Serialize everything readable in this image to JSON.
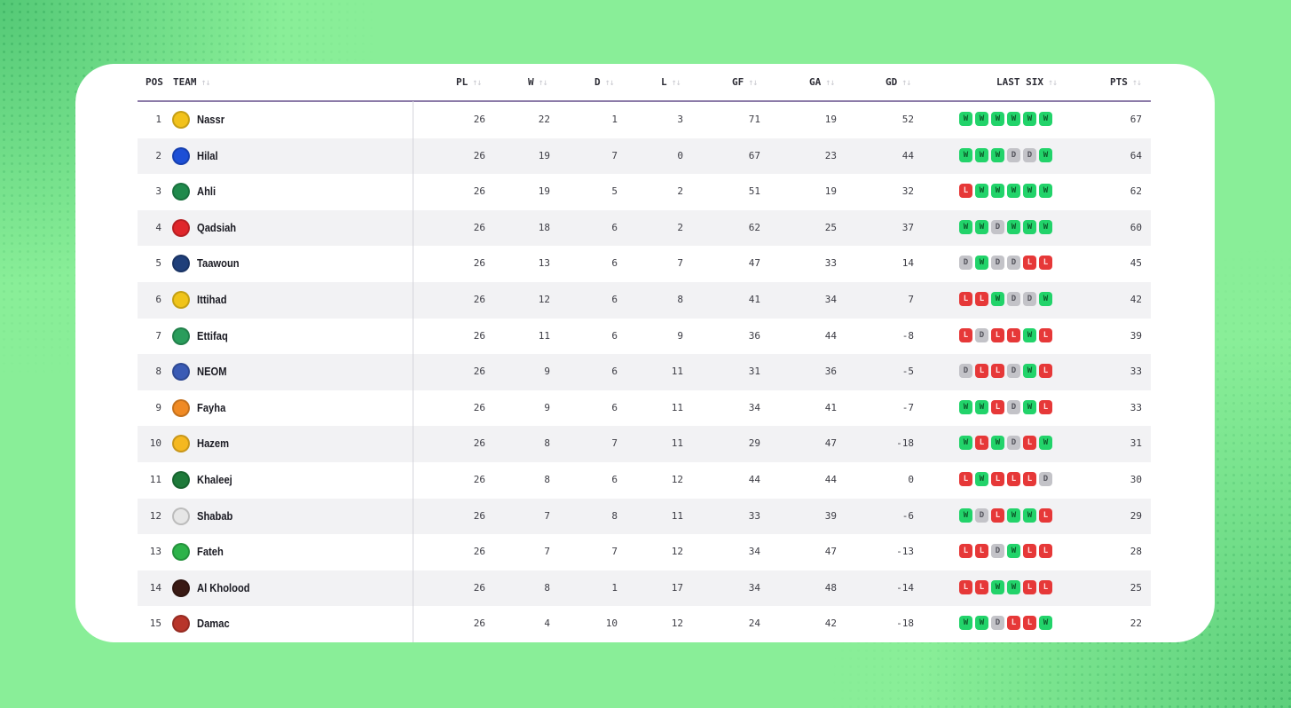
{
  "headers": {
    "pos": "POS",
    "team": "TEAM",
    "pl": "PL",
    "w": "W",
    "d": "D",
    "l": "L",
    "gf": "GF",
    "ga": "GA",
    "gd": "GD",
    "last_six": "LAST SIX",
    "pts": "PTS"
  },
  "colors": {
    "win": "#22d36a",
    "loss": "#e63838",
    "draw": "#c3c3c8",
    "background": "#89ee98"
  },
  "rows": [
    {
      "pos": "1",
      "team": "Nassr",
      "pl": "26",
      "w": "22",
      "d": "1",
      "l": "3",
      "gf": "71",
      "ga": "19",
      "gd": "52",
      "form": [
        "W",
        "W",
        "W",
        "W",
        "W",
        "W"
      ],
      "pts": "67",
      "logo_color": "#f2c21b"
    },
    {
      "pos": "2",
      "team": "Hilal",
      "pl": "26",
      "w": "19",
      "d": "7",
      "l": "0",
      "gf": "67",
      "ga": "23",
      "gd": "44",
      "form": [
        "W",
        "W",
        "W",
        "D",
        "D",
        "W"
      ],
      "pts": "64",
      "logo_color": "#1d4fd6"
    },
    {
      "pos": "3",
      "team": "Ahli",
      "pl": "26",
      "w": "19",
      "d": "5",
      "l": "2",
      "gf": "51",
      "ga": "19",
      "gd": "32",
      "form": [
        "L",
        "W",
        "W",
        "W",
        "W",
        "W"
      ],
      "pts": "62",
      "logo_color": "#1f8a4c"
    },
    {
      "pos": "4",
      "team": "Qadsiah",
      "pl": "26",
      "w": "18",
      "d": "6",
      "l": "2",
      "gf": "62",
      "ga": "25",
      "gd": "37",
      "form": [
        "W",
        "W",
        "D",
        "W",
        "W",
        "W"
      ],
      "pts": "60",
      "logo_color": "#e0262b"
    },
    {
      "pos": "5",
      "team": "Taawoun",
      "pl": "26",
      "w": "13",
      "d": "6",
      "l": "7",
      "gf": "47",
      "ga": "33",
      "gd": "14",
      "form": [
        "D",
        "W",
        "D",
        "D",
        "L",
        "L"
      ],
      "pts": "45",
      "logo_color": "#1f3f7a"
    },
    {
      "pos": "6",
      "team": "Ittihad",
      "pl": "26",
      "w": "12",
      "d": "6",
      "l": "8",
      "gf": "41",
      "ga": "34",
      "gd": "7",
      "form": [
        "L",
        "L",
        "W",
        "D",
        "D",
        "W"
      ],
      "pts": "42",
      "logo_color": "#f0c419"
    },
    {
      "pos": "7",
      "team": "Ettifaq",
      "pl": "26",
      "w": "11",
      "d": "6",
      "l": "9",
      "gf": "36",
      "ga": "44",
      "gd": "-8",
      "form": [
        "L",
        "D",
        "L",
        "L",
        "W",
        "L"
      ],
      "pts": "39",
      "logo_color": "#2a9d5c"
    },
    {
      "pos": "8",
      "team": "NEOM",
      "pl": "26",
      "w": "9",
      "d": "6",
      "l": "11",
      "gf": "31",
      "ga": "36",
      "gd": "-5",
      "form": [
        "D",
        "L",
        "L",
        "D",
        "W",
        "L"
      ],
      "pts": "33",
      "logo_color": "#3a5bb5"
    },
    {
      "pos": "9",
      "team": "Fayha",
      "pl": "26",
      "w": "9",
      "d": "6",
      "l": "11",
      "gf": "34",
      "ga": "41",
      "gd": "-7",
      "form": [
        "W",
        "W",
        "L",
        "D",
        "W",
        "L"
      ],
      "pts": "33",
      "logo_color": "#f08a24"
    },
    {
      "pos": "10",
      "team": "Hazem",
      "pl": "26",
      "w": "8",
      "d": "7",
      "l": "11",
      "gf": "29",
      "ga": "47",
      "gd": "-18",
      "form": [
        "W",
        "L",
        "W",
        "D",
        "L",
        "W"
      ],
      "pts": "31",
      "logo_color": "#f5b820"
    },
    {
      "pos": "11",
      "team": "Khaleej",
      "pl": "26",
      "w": "8",
      "d": "6",
      "l": "12",
      "gf": "44",
      "ga": "44",
      "gd": "0",
      "form": [
        "L",
        "W",
        "L",
        "L",
        "L",
        "D"
      ],
      "pts": "30",
      "logo_color": "#1e7a3a"
    },
    {
      "pos": "12",
      "team": "Shabab",
      "pl": "26",
      "w": "7",
      "d": "8",
      "l": "11",
      "gf": "33",
      "ga": "39",
      "gd": "-6",
      "form": [
        "W",
        "D",
        "L",
        "W",
        "W",
        "L"
      ],
      "pts": "29",
      "logo_color": "#e6e6e6"
    },
    {
      "pos": "13",
      "team": "Fateh",
      "pl": "26",
      "w": "7",
      "d": "7",
      "l": "12",
      "gf": "34",
      "ga": "47",
      "gd": "-13",
      "form": [
        "L",
        "L",
        "D",
        "W",
        "L",
        "L"
      ],
      "pts": "28",
      "logo_color": "#2db34a"
    },
    {
      "pos": "14",
      "team": "Al Kholood",
      "pl": "26",
      "w": "8",
      "d": "1",
      "l": "17",
      "gf": "34",
      "ga": "48",
      "gd": "-14",
      "form": [
        "L",
        "L",
        "W",
        "W",
        "L",
        "L"
      ],
      "pts": "25",
      "logo_color": "#3a1a14"
    },
    {
      "pos": "15",
      "team": "Damac",
      "pl": "26",
      "w": "4",
      "d": "10",
      "l": "12",
      "gf": "24",
      "ga": "42",
      "gd": "-18",
      "form": [
        "W",
        "W",
        "D",
        "L",
        "L",
        "W"
      ],
      "pts": "22",
      "logo_color": "#b8352a"
    }
  ]
}
